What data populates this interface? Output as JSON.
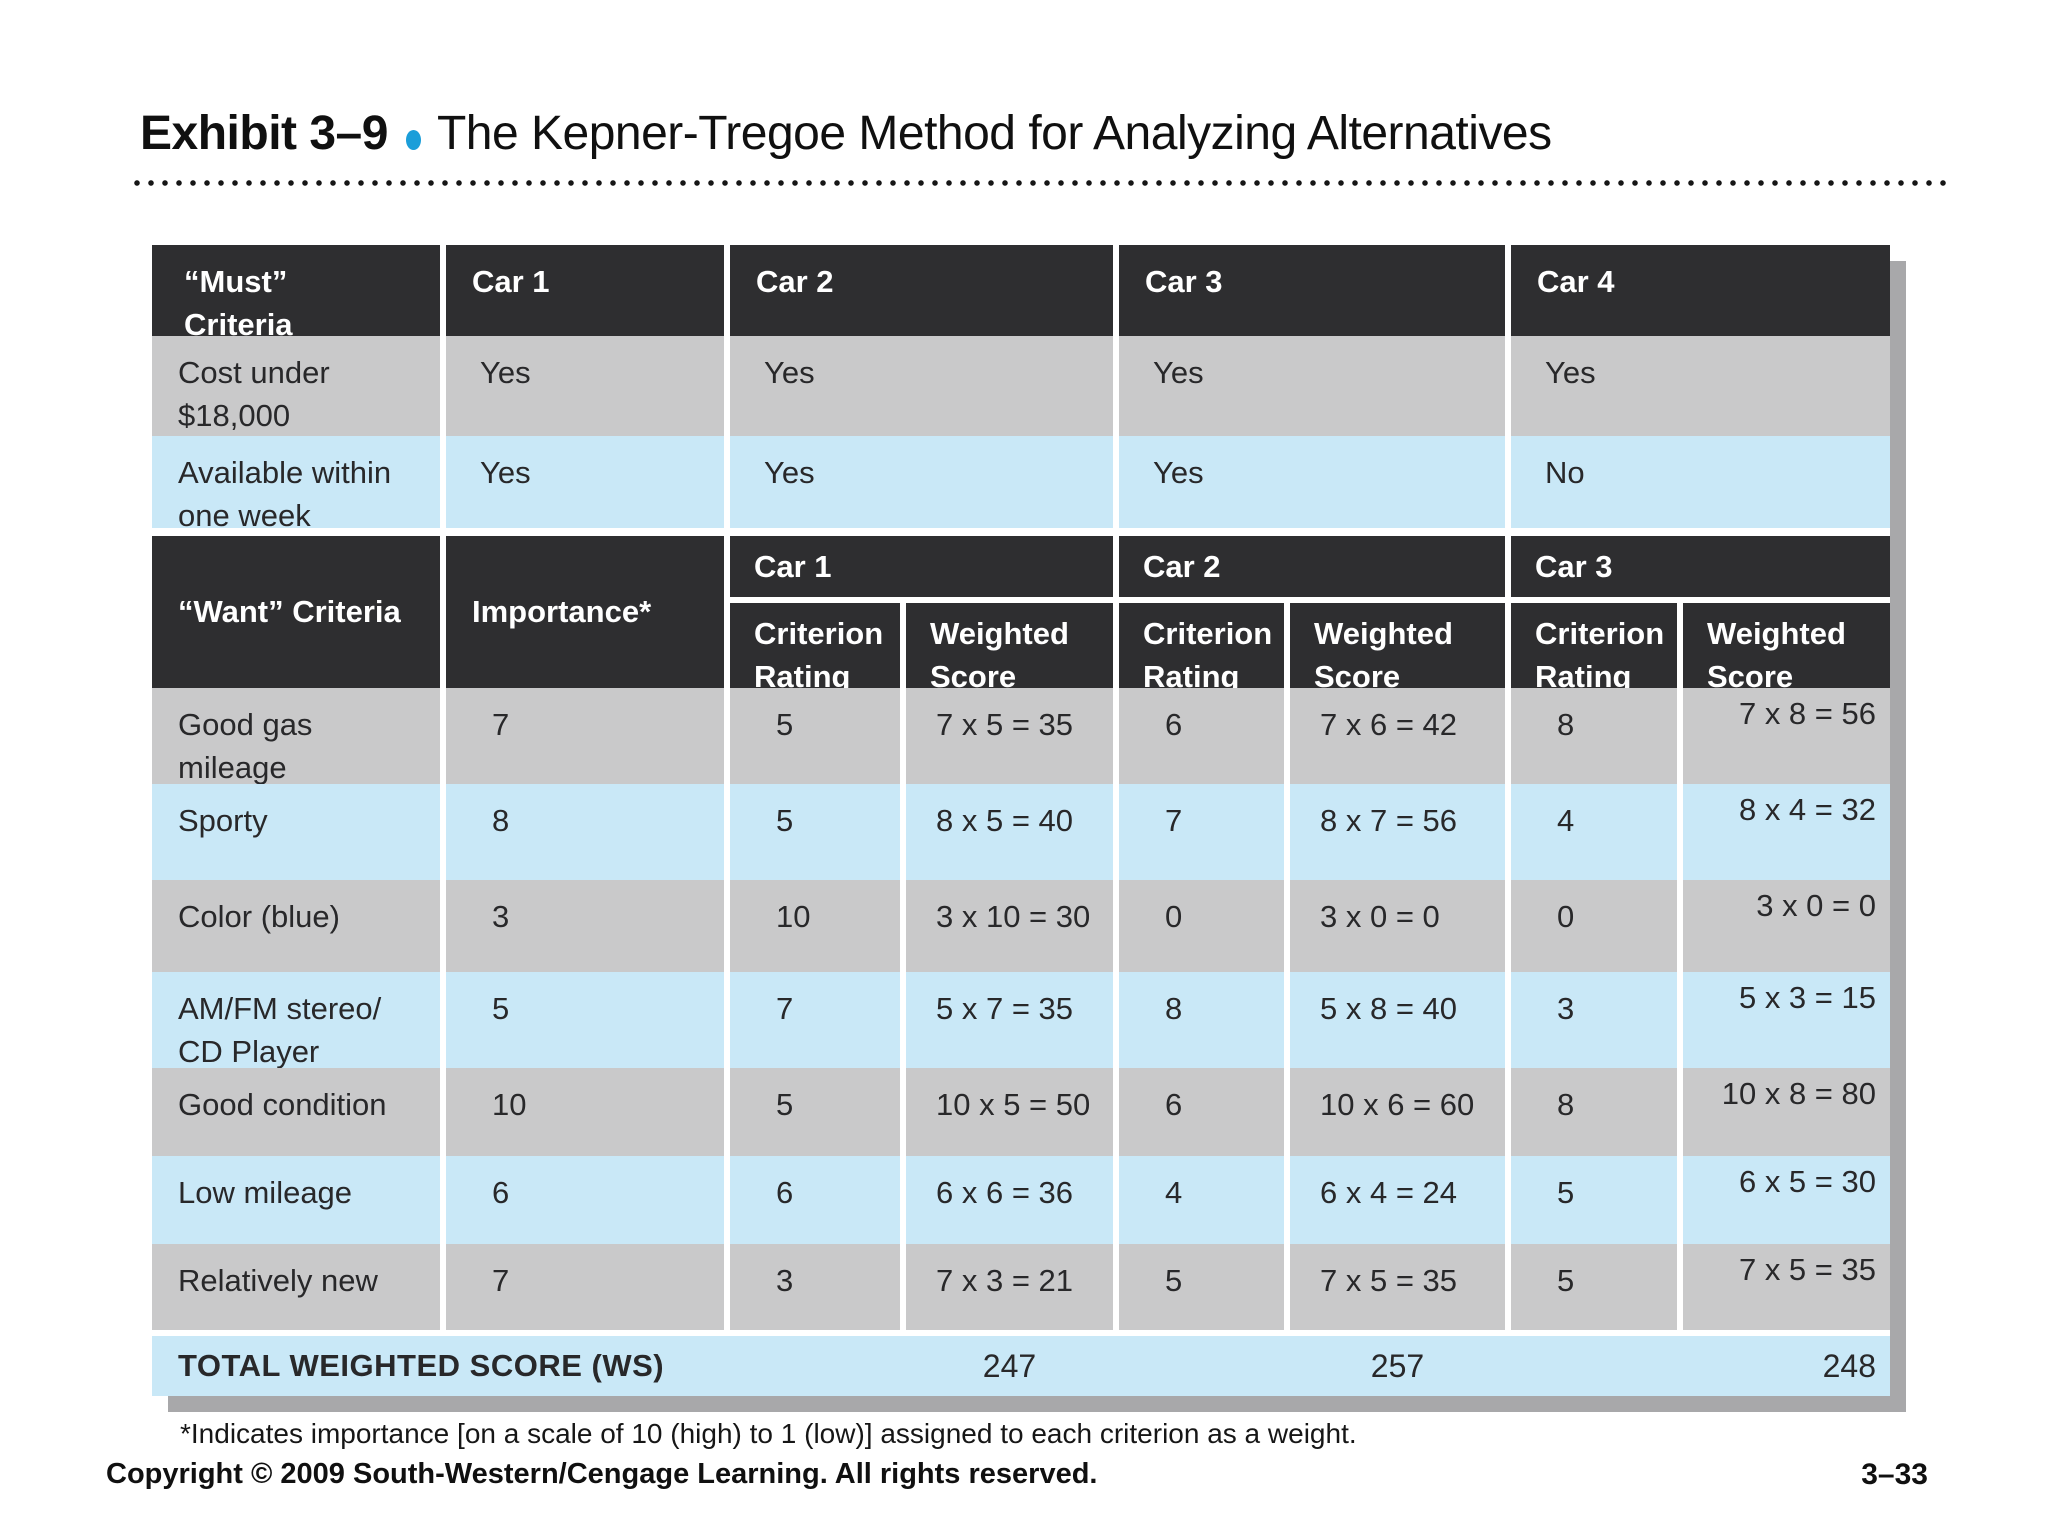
{
  "header": {
    "exhibit": "Exhibit 3–9",
    "title": "The Kepner-Tregoe Method for Analyzing Alternatives"
  },
  "colors": {
    "header_bg": "#2e2e30",
    "row_gray": "#c9c9ca",
    "row_blue": "#c9e8f7",
    "shadow_gray": "#a8a8aa",
    "bullet_blue": "#1b9ed9"
  },
  "must": {
    "header": [
      "“Must”\nCriteria",
      "Car 1",
      "Car 2",
      "Car 3",
      "Car 4"
    ],
    "rows": [
      {
        "criterion": "Cost under\n$18,000",
        "values": [
          "Yes",
          "Yes",
          "Yes",
          "Yes"
        ]
      },
      {
        "criterion": "Available within\none week",
        "values": [
          "Yes",
          "Yes",
          "Yes",
          "No"
        ]
      }
    ]
  },
  "want": {
    "criteria_header": "“Want” Criteria",
    "importance_header": "Importance*",
    "groups": [
      "Car 1",
      "Car 2",
      "Car 3"
    ],
    "sub_rating": "Criterion\nRating",
    "sub_score": "Weighted\nScore",
    "rows": [
      {
        "criterion": "Good gas\nmileage",
        "importance": "7",
        "r1": "5",
        "s1": "7 x 5 = 35",
        "r2": "6",
        "s2": "7 x 6 = 42",
        "r3": "8",
        "s3": "7 x 8 = 56"
      },
      {
        "criterion": "Sporty",
        "importance": "8",
        "r1": "5",
        "s1": "8 x 5 = 40",
        "r2": "7",
        "s2": "8 x 7 = 56",
        "r3": "4",
        "s3": "8 x 4 = 32"
      },
      {
        "criterion": "Color (blue)",
        "importance": "3",
        "r1": "10",
        "s1": "3 x 10 = 30",
        "r2": "0",
        "s2": "3 x 0 = 0",
        "r3": "0",
        "s3": "3 x 0 = 0"
      },
      {
        "criterion": "AM/FM stereo/\nCD Player",
        "importance": "5",
        "r1": "7",
        "s1": "5 x 7 = 35",
        "r2": "8",
        "s2": "5 x 8 = 40",
        "r3": "3",
        "s3": "5 x 3 = 15"
      },
      {
        "criterion": "Good condition",
        "importance": "10",
        "r1": "5",
        "s1": "10 x 5 = 50",
        "r2": "6",
        "s2": "10 x 6 = 60",
        "r3": "8",
        "s3": "10 x 8 = 80"
      },
      {
        "criterion": "Low mileage",
        "importance": "6",
        "r1": "6",
        "s1": "6 x 6 = 36",
        "r2": "4",
        "s2": "6 x 4 = 24",
        "r3": "5",
        "s3": "6 x 5 = 30"
      },
      {
        "criterion": "Relatively new",
        "importance": "7",
        "r1": "3",
        "s1": "7 x 3 = 21",
        "r2": "5",
        "s2": "7 x 5 = 35",
        "r3": "5",
        "s3": "7 x 5 = 35"
      }
    ],
    "total": {
      "label": "TOTAL WEIGHTED SCORE (WS)",
      "s1": "247",
      "s2": "257",
      "s3": "248"
    }
  },
  "footer": {
    "footnote": "*Indicates importance [on a scale of 10 (high) to 1 (low)] assigned to each criterion as a weight.",
    "copyright": "Copyright © 2009 South-Western/Cengage Learning. All rights reserved.",
    "page": "3–33"
  }
}
